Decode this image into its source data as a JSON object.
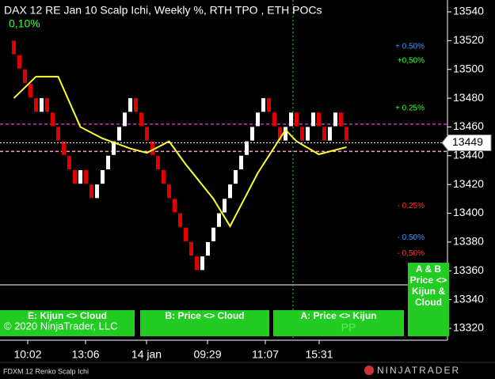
{
  "chart_data": {
    "type": "renko",
    "title": "DAX 12 RE Jan 10 Scalp Ichi, Weekly %, RTH TPO , ETH POCs",
    "subtitle": "0,10%",
    "instrument_label": "FDXM 12 Renko Scalp Ichi",
    "brand": "NINJATRADER",
    "copyright": "© 2020 NinjaTrader, LLC",
    "watermark": "PP",
    "up_color": "#ffffff",
    "down_color": "#e00000",
    "open": [
      13520,
      13510,
      13500,
      13490,
      13480,
      13470,
      13480,
      13470,
      13460,
      13450,
      13440,
      13430,
      13420,
      13430,
      13420,
      13410,
      13420,
      13430,
      13440,
      13450,
      13460,
      13470,
      13480,
      13470,
      13460,
      13450,
      13440,
      13430,
      13420,
      13410,
      13400,
      13390,
      13380,
      13370,
      13360,
      13370,
      13380,
      13390,
      13400,
      13410,
      13420,
      13430,
      13440,
      13450,
      13460,
      13470,
      13480,
      13470,
      13460,
      13450,
      13460,
      13470,
      13460,
      13450,
      13460,
      13470,
      13460,
      13450,
      13460,
      13470,
      13460
    ],
    "close": [
      13510,
      13500,
      13490,
      13480,
      13470,
      13480,
      13470,
      13460,
      13450,
      13440,
      13430,
      13420,
      13430,
      13420,
      13410,
      13420,
      13430,
      13440,
      13450,
      13460,
      13470,
      13480,
      13470,
      13460,
      13450,
      13440,
      13430,
      13420,
      13410,
      13400,
      13390,
      13380,
      13370,
      13360,
      13370,
      13380,
      13390,
      13400,
      13410,
      13420,
      13430,
      13440,
      13450,
      13460,
      13470,
      13480,
      13470,
      13460,
      13450,
      13460,
      13470,
      13460,
      13450,
      13460,
      13470,
      13460,
      13450,
      13460,
      13470,
      13460,
      13450
    ],
    "kijun": {
      "color": "#ffff33",
      "x": [
        0,
        4,
        8,
        12,
        16,
        21,
        24,
        28,
        31,
        36,
        39,
        44,
        49,
        51,
        55,
        60
      ],
      "values": [
        13480,
        13495,
        13495,
        13460,
        13452,
        13445,
        13442,
        13450,
        13434,
        13410,
        13391,
        13428,
        13458,
        13450,
        13441,
        13446
      ]
    },
    "poc_lines": [
      {
        "value": 13462,
        "color": "#cc33cc"
      },
      {
        "value": 13443,
        "color": "#ff99cc"
      }
    ],
    "last_price": 13449,
    "percent_levels": [
      {
        "value": 13516,
        "label": "+ 0.50%",
        "color": "#4499ff"
      },
      {
        "value": 13506,
        "label": "+0,50%",
        "color": "#33ff33"
      },
      {
        "value": 13473,
        "label": "+ 0.25%",
        "color": "#33ff33"
      },
      {
        "value": 13405,
        "label": "- 0.25%",
        "color": "#ff3333"
      },
      {
        "value": 13383,
        "label": "- 0.50%",
        "color": "#4499ff"
      },
      {
        "value": 13372,
        "label": "- 0,50%",
        "color": "#ff3333"
      }
    ],
    "time_labels": [
      "10:02",
      "13:06",
      "14 jan",
      "09:29",
      "11:07",
      "15:31"
    ],
    "buttons": [
      "E: Kijun <> Cloud",
      "B: Price <> Cloud",
      "A: Price <> Kijun"
    ],
    "combo_button": [
      "A & B",
      "Price <>",
      "Kijun &",
      "Cloud"
    ],
    "ylim": [
      13310,
      13550
    ],
    "yticks": [
      13320,
      13340,
      13360,
      13380,
      13400,
      13420,
      13440,
      13460,
      13480,
      13500,
      13520,
      13540
    ]
  }
}
